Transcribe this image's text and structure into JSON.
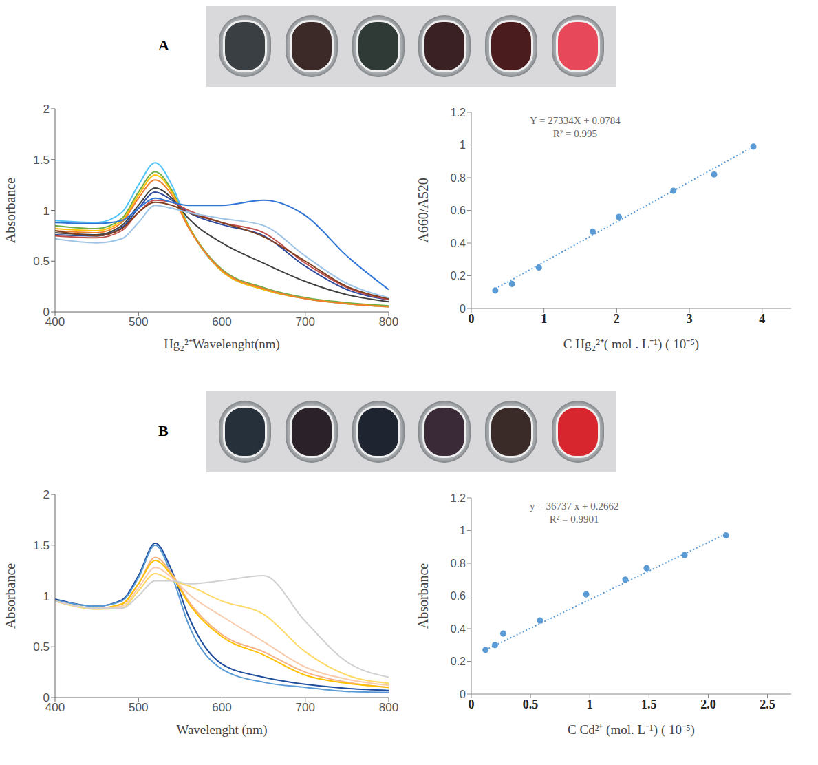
{
  "panels": [
    {
      "label": "A",
      "vial_colors": [
        "#3a3f44",
        "#3b2a28",
        "#2f3a36",
        "#3a2224",
        "#4a1c1e",
        "#e8495a"
      ]
    },
    {
      "label": "B",
      "vial_colors": [
        "#25303a",
        "#2a2228",
        "#1e2430",
        "#3a2a38",
        "#3a2a28",
        "#d8262e"
      ]
    }
  ],
  "chart_data": [
    {
      "type": "line",
      "xlabel": "Hg₂²⁺Wavelenght(nm)",
      "ylabel": "Absorbance",
      "xlim": [
        400,
        800
      ],
      "xticks": [
        400,
        500,
        600,
        700,
        800
      ],
      "ylim": [
        0,
        2
      ],
      "yticks": [
        0,
        0.5,
        1,
        1.5,
        2
      ],
      "marker": "none",
      "line_style": "solid",
      "x": [
        400,
        450,
        480,
        500,
        520,
        540,
        560,
        600,
        650,
        700,
        750,
        800
      ],
      "series": [
        {
          "color": "#4fc3f7",
          "values": [
            0.9,
            0.88,
            0.98,
            1.25,
            1.47,
            1.25,
            0.85,
            0.4,
            0.22,
            0.13,
            0.08,
            0.05
          ]
        },
        {
          "color": "#70ad47",
          "values": [
            0.85,
            0.82,
            0.92,
            1.18,
            1.38,
            1.2,
            0.85,
            0.42,
            0.24,
            0.14,
            0.09,
            0.06
          ]
        },
        {
          "color": "#ffc000",
          "values": [
            0.82,
            0.8,
            0.9,
            1.15,
            1.35,
            1.18,
            0.84,
            0.4,
            0.22,
            0.13,
            0.08,
            0.05
          ]
        },
        {
          "color": "#ed7d31",
          "values": [
            0.8,
            0.78,
            0.88,
            1.12,
            1.3,
            1.15,
            0.83,
            0.41,
            0.23,
            0.13,
            0.08,
            0.05
          ]
        },
        {
          "color": "#404040",
          "values": [
            0.78,
            0.76,
            0.85,
            1.05,
            1.22,
            1.12,
            0.92,
            0.68,
            0.48,
            0.3,
            0.17,
            0.1
          ]
        },
        {
          "color": "#2e4a9e",
          "values": [
            0.76,
            0.75,
            0.83,
            1.02,
            1.18,
            1.1,
            0.98,
            0.86,
            0.75,
            0.45,
            0.22,
            0.12
          ]
        },
        {
          "color": "#c0504d",
          "values": [
            0.75,
            0.73,
            0.8,
            0.98,
            1.1,
            1.08,
            1.0,
            0.88,
            0.78,
            0.48,
            0.24,
            0.12
          ]
        },
        {
          "color": "#7f3f1f",
          "values": [
            0.8,
            0.75,
            0.82,
            0.98,
            1.08,
            1.05,
            0.98,
            0.88,
            0.74,
            0.5,
            0.25,
            0.13
          ]
        },
        {
          "color": "#9dc3e6",
          "values": [
            0.72,
            0.68,
            0.72,
            0.88,
            1.05,
            1.02,
            0.98,
            0.92,
            0.85,
            0.55,
            0.28,
            0.14
          ]
        },
        {
          "color": "#2f75d6",
          "values": [
            0.88,
            0.87,
            0.9,
            1.02,
            1.12,
            1.08,
            1.05,
            1.05,
            1.1,
            0.95,
            0.55,
            0.22
          ]
        }
      ]
    },
    {
      "type": "scatter",
      "xlabel": "C Hg₂²⁺( mol . L⁻¹)   ( 10⁻⁵)",
      "ylabel": "A660/A520",
      "annotations": [
        "Y = 27334X + 0.0784",
        "R² = 0.995"
      ],
      "xlim": [
        0,
        4.4
      ],
      "xticks": [
        0,
        1,
        2,
        3,
        4
      ],
      "ylim": [
        0,
        1.2
      ],
      "yticks": [
        0,
        0.2,
        0.4,
        0.6,
        0.8,
        1,
        1.2
      ],
      "series": [
        {
          "type": "scatter",
          "color": "#5b9bd5",
          "marker": "circle",
          "x": [
            0.33,
            0.56,
            0.93,
            1.67,
            2.03,
            2.78,
            3.34,
            3.88
          ],
          "values": [
            0.11,
            0.15,
            0.25,
            0.47,
            0.56,
            0.72,
            0.82,
            0.99
          ]
        },
        {
          "type": "line",
          "color": "#5b9bd5",
          "line_style": "dotted",
          "x": [
            0.33,
            3.88
          ],
          "values": [
            0.12,
            0.99
          ]
        }
      ]
    },
    {
      "type": "line",
      "xlabel": "Wavelenght (nm)",
      "ylabel": "Absorbance",
      "xlim": [
        400,
        800
      ],
      "xticks": [
        400,
        500,
        600,
        700,
        800
      ],
      "ylim": [
        0,
        2
      ],
      "yticks": [
        0,
        0.5,
        1,
        1.5,
        2
      ],
      "marker": "none",
      "line_style": "solid",
      "x": [
        400,
        450,
        480,
        500,
        520,
        540,
        560,
        600,
        650,
        700,
        750,
        800
      ],
      "series": [
        {
          "color": "#1f4e9e",
          "values": [
            0.97,
            0.9,
            0.96,
            1.2,
            1.52,
            1.25,
            0.8,
            0.33,
            0.2,
            0.13,
            0.09,
            0.07
          ]
        },
        {
          "color": "#5b9bd5",
          "values": [
            0.96,
            0.9,
            0.95,
            1.18,
            1.5,
            1.2,
            0.72,
            0.28,
            0.15,
            0.1,
            0.06,
            0.05
          ]
        },
        {
          "color": "#f4b183",
          "values": [
            0.95,
            0.88,
            0.92,
            1.12,
            1.38,
            1.22,
            0.95,
            0.62,
            0.45,
            0.25,
            0.15,
            0.1
          ]
        },
        {
          "color": "#ffc000",
          "values": [
            0.95,
            0.88,
            0.92,
            1.12,
            1.35,
            1.2,
            0.93,
            0.6,
            0.42,
            0.22,
            0.14,
            0.1
          ]
        },
        {
          "color": "#f8cbad",
          "values": [
            0.95,
            0.88,
            0.9,
            1.08,
            1.28,
            1.18,
            1.02,
            0.8,
            0.55,
            0.3,
            0.18,
            0.12
          ]
        },
        {
          "color": "#ffd966",
          "values": [
            0.95,
            0.87,
            0.88,
            1.05,
            1.22,
            1.15,
            1.1,
            0.95,
            0.82,
            0.45,
            0.22,
            0.14
          ]
        },
        {
          "color": "#d0d0d0",
          "values": [
            0.95,
            0.88,
            0.88,
            1.0,
            1.15,
            1.15,
            1.12,
            1.15,
            1.2,
            0.75,
            0.35,
            0.2
          ]
        }
      ]
    },
    {
      "type": "scatter",
      "xlabel": "C Cd²⁺ (mol. L⁻¹)  ( 10⁻⁵)",
      "ylabel": "Absorbance",
      "annotations": [
        "y = 36737 x + 0.2662",
        "R² = 0.9901"
      ],
      "xlim": [
        0,
        2.7
      ],
      "xticks": [
        0,
        0.5,
        1,
        1.5,
        {
          "value": 2,
          "label": "2.0"
        },
        2.5
      ],
      "ylim": [
        0,
        1.2
      ],
      "yticks": [
        0,
        0.2,
        0.4,
        0.6,
        0.8,
        1,
        1.2
      ],
      "series": [
        {
          "type": "scatter",
          "color": "#5b9bd5",
          "marker": "circle",
          "x": [
            0.12,
            0.2,
            0.27,
            0.58,
            0.97,
            1.3,
            1.48,
            1.8,
            2.15
          ],
          "values": [
            0.27,
            0.3,
            0.37,
            0.45,
            0.61,
            0.7,
            0.77,
            0.85,
            0.97
          ]
        },
        {
          "type": "line",
          "color": "#5b9bd5",
          "line_style": "dotted",
          "x": [
            0.12,
            2.15
          ],
          "values": [
            0.27,
            0.98
          ]
        }
      ]
    }
  ]
}
